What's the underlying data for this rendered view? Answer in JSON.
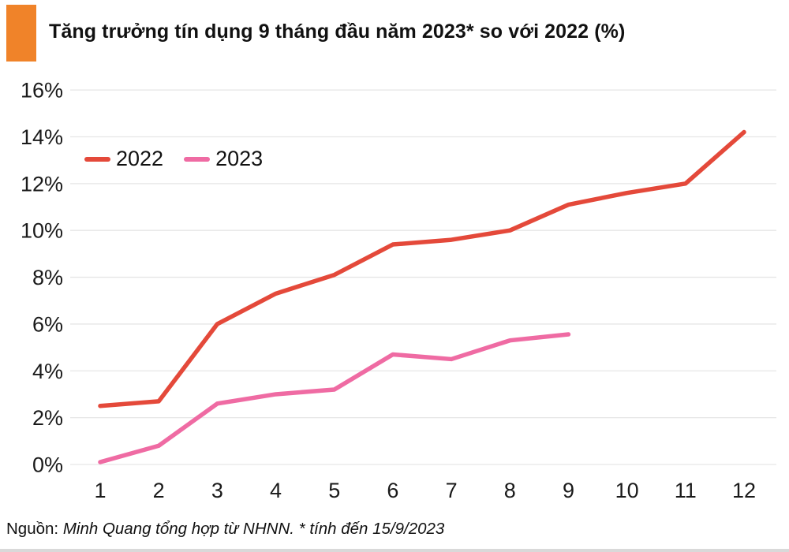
{
  "header": {
    "title": "Tăng trưởng tín dụng 9 tháng đầu năm 2023* so với 2022 (%)",
    "accent_color": "#F08329"
  },
  "chart_data": {
    "type": "line",
    "x": [
      1,
      2,
      3,
      4,
      5,
      6,
      7,
      8,
      9,
      10,
      11,
      12
    ],
    "series": [
      {
        "name": "2022",
        "color": "#E4493A",
        "values": [
          2.5,
          2.7,
          6.0,
          7.3,
          8.1,
          9.4,
          9.6,
          10.0,
          11.1,
          11.6,
          12.0,
          14.2
        ]
      },
      {
        "name": "2023",
        "color": "#EF6BA3",
        "values": [
          0.1,
          0.8,
          2.6,
          3.0,
          3.2,
          4.7,
          4.5,
          5.3,
          5.56
        ]
      }
    ],
    "title": "Tăng trưởng tín dụng 9 tháng đầu năm 2023* so với 2022 (%)",
    "xlabel": "",
    "ylabel": "",
    "ylim": [
      0,
      16
    ],
    "ytick_step": 2,
    "ytick_suffix": "%",
    "xtick_labels": [
      "1",
      "2",
      "3",
      "4",
      "5",
      "6",
      "7",
      "8",
      "9",
      "10",
      "11",
      "12"
    ],
    "grid": "horizontal",
    "gridline_color": "#e6e6e6",
    "legend_position": "top-left-inside"
  },
  "footer": {
    "source_prefix": "Nguồn:",
    "source_text": "Minh Quang tổng hợp từ NHNN. * tính đến 15/9/2023"
  }
}
